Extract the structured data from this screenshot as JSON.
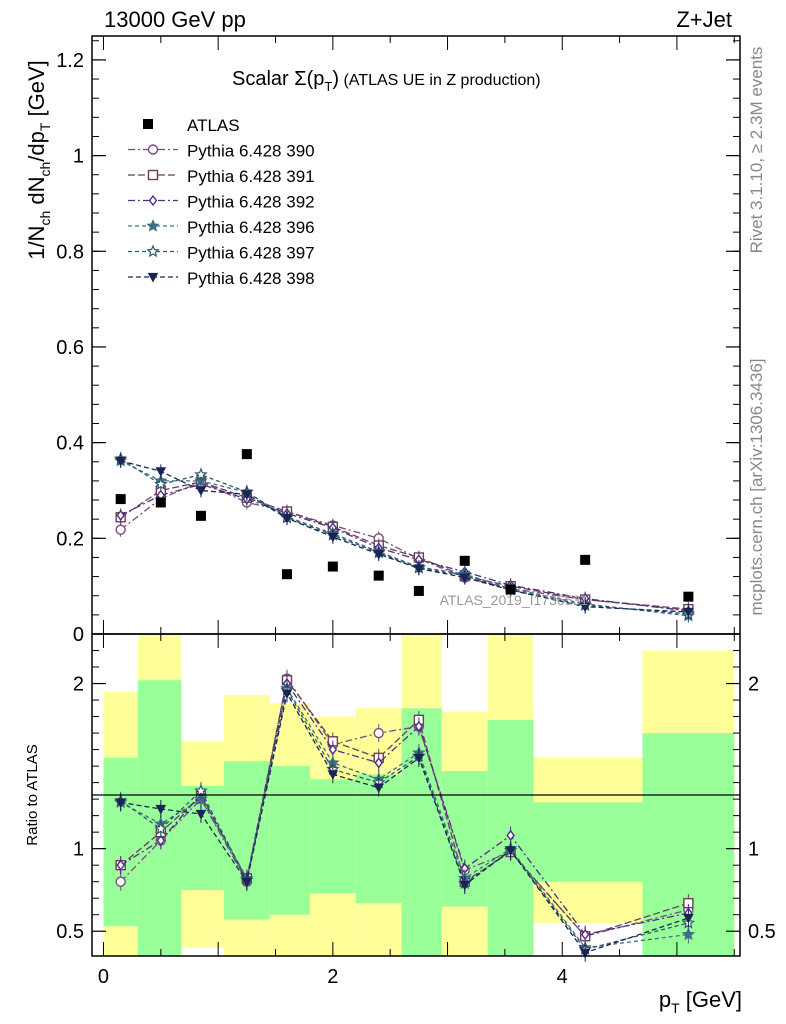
{
  "header": {
    "left": "13000 GeV pp",
    "right": "Z+Jet"
  },
  "side_text": {
    "top": "Rivet 3.1.10, ≥ 2.3M events",
    "bottom": "mcplots.cern.ch [arXiv:1306.3436]"
  },
  "colors": {
    "band_outer": "#ffff99",
    "band_inner": "#99ff99",
    "data": "#000000",
    "s390": "#7a4a82",
    "s391": "#6b3f5a",
    "s392": "#4e2e86",
    "s396": "#3e6f80",
    "s397": "#2e5a6a",
    "s398": "#1a2555"
  },
  "chart_data": [
    {
      "type": "scatter",
      "name": "main",
      "title": "Scalar Σ(p_T) (ATLAS UE in Z production)",
      "title_main": "Scalar ",
      "title_sigma": "Σ(p",
      "title_sub": "T",
      "title_close": ")",
      "title_rest": " (ATLAS UE in Z production)",
      "ylabel": "1/N_ch dN_ch/dp_T [GeV]",
      "ylabel_parts": {
        "a": "1/N",
        "a_sub": "ch",
        "b": " dN",
        "b_sub": "ch",
        "c": "/dp",
        "c_sub": "T",
        "d": " [GeV]"
      },
      "ylim": [
        0,
        1.25
      ],
      "xlim": [
        -0.1,
        5.55
      ],
      "yticks": [
        0,
        0.2,
        0.4,
        0.6,
        0.8,
        1,
        1.2
      ],
      "ytick_labels": [
        "0",
        "0.2",
        "0.4",
        "0.6",
        "0.8",
        "1",
        "1.2"
      ],
      "watermark": "ATLAS_2019_I1736531",
      "legend_position": "top-left",
      "x": [
        0.15,
        0.5,
        0.85,
        1.25,
        1.6,
        2.0,
        2.4,
        2.75,
        3.15,
        3.55,
        4.2,
        5.1
      ],
      "data": {
        "name": "ATLAS",
        "values": [
          0.282,
          0.275,
          0.247,
          0.376,
          0.125,
          0.141,
          0.122,
          0.09,
          0.153,
          0.093,
          0.155,
          0.078
        ]
      },
      "series": [
        {
          "name": "Pythia 6.428 390",
          "marker": "circle",
          "values": [
            0.218,
            0.283,
            0.318,
            0.275,
            0.256,
            0.227,
            0.2,
            0.157,
            0.118,
            0.095,
            0.072,
            0.05
          ]
        },
        {
          "name": "Pythia 6.428 391",
          "marker": "square",
          "values": [
            0.244,
            0.3,
            0.318,
            0.285,
            0.256,
            0.224,
            0.185,
            0.16,
            0.121,
            0.1,
            0.072,
            0.052
          ]
        },
        {
          "name": "Pythia 6.428 392",
          "marker": "diamond",
          "values": [
            0.248,
            0.29,
            0.313,
            0.282,
            0.252,
            0.222,
            0.18,
            0.155,
            0.13,
            0.102,
            0.074,
            0.048
          ]
        },
        {
          "name": "Pythia 6.428 396",
          "marker": "star",
          "values": [
            0.362,
            0.32,
            0.32,
            0.296,
            0.245,
            0.21,
            0.172,
            0.14,
            0.125,
            0.095,
            0.063,
            0.038
          ]
        },
        {
          "name": "Pythia 6.428 397",
          "marker": "star-open",
          "values": [
            0.366,
            0.313,
            0.333,
            0.297,
            0.243,
            0.207,
            0.17,
            0.138,
            0.122,
            0.092,
            0.06,
            0.042
          ]
        },
        {
          "name": "Pythia 6.428 398",
          "marker": "triangle-down",
          "values": [
            0.362,
            0.34,
            0.3,
            0.292,
            0.242,
            0.203,
            0.167,
            0.137,
            0.118,
            0.092,
            0.057,
            0.046
          ]
        }
      ]
    },
    {
      "type": "scatter",
      "name": "ratio",
      "ylabel": "Ratio to ATLAS",
      "xlabel": "p_T [GeV]",
      "xlabel_main": "p",
      "xlabel_sub": "T",
      "xlabel_unit": " [GeV]",
      "ylim": [
        0.35,
        2.3
      ],
      "xlim": [
        -0.1,
        5.55
      ],
      "yticks": [
        0.5,
        1,
        2
      ],
      "ytick_labels": [
        "0.5",
        "1",
        "2"
      ],
      "xticks": [
        0,
        2,
        4
      ],
      "xtick_labels": [
        "0",
        "2",
        "4"
      ],
      "bins": [
        [
          0.0,
          0.3
        ],
        [
          0.3,
          0.68
        ],
        [
          0.68,
          1.05
        ],
        [
          1.05,
          1.45
        ],
        [
          1.45,
          1.8
        ],
        [
          1.8,
          2.2
        ],
        [
          2.2,
          2.6
        ],
        [
          2.6,
          2.95
        ],
        [
          2.95,
          3.35
        ],
        [
          3.35,
          3.75
        ],
        [
          3.75,
          4.7
        ],
        [
          4.7,
          5.5
        ]
      ],
      "band_outer": [
        [
          0.35,
          1.95
        ],
        [
          0.35,
          2.3
        ],
        [
          0.4,
          1.65
        ],
        [
          0.35,
          1.93
        ],
        [
          0.35,
          1.88
        ],
        [
          0.35,
          1.8
        ],
        [
          0.35,
          1.85
        ],
        [
          0.35,
          2.3
        ],
        [
          0.35,
          1.83
        ],
        [
          0.35,
          2.3
        ],
        [
          0.55,
          1.55
        ],
        [
          0.35,
          2.2
        ]
      ],
      "band_inner": [
        [
          0.53,
          1.55
        ],
        [
          0.35,
          2.02
        ],
        [
          0.75,
          1.38
        ],
        [
          0.57,
          1.53
        ],
        [
          0.6,
          1.5
        ],
        [
          0.73,
          1.42
        ],
        [
          0.67,
          1.45
        ],
        [
          0.35,
          1.85
        ],
        [
          0.65,
          1.47
        ],
        [
          0.35,
          1.78
        ],
        [
          0.8,
          1.28
        ],
        [
          0.35,
          1.7
        ]
      ],
      "x": [
        0.15,
        0.5,
        0.85,
        1.25,
        1.6,
        2.0,
        2.4,
        2.75,
        3.15,
        3.55,
        4.2,
        5.1
      ],
      "series": [
        {
          "name": "Pythia 6.428 390",
          "marker": "circle",
          "values": [
            0.8,
            1.05,
            1.3,
            0.8,
            2.03,
            1.63,
            1.7,
            1.74,
            0.87,
            0.98,
            0.47,
            0.63
          ]
        },
        {
          "name": "Pythia 6.428 391",
          "marker": "square",
          "values": [
            0.9,
            1.1,
            1.32,
            0.82,
            2.02,
            1.65,
            1.55,
            1.78,
            0.8,
            0.98,
            0.47,
            0.67
          ]
        },
        {
          "name": "Pythia 6.428 392",
          "marker": "diamond",
          "values": [
            0.9,
            1.05,
            1.33,
            0.8,
            2.0,
            1.6,
            1.52,
            1.74,
            0.88,
            1.08,
            0.48,
            0.61
          ]
        },
        {
          "name": "Pythia 6.428 396",
          "marker": "star",
          "values": [
            1.28,
            1.15,
            1.3,
            0.82,
            1.97,
            1.52,
            1.42,
            1.58,
            0.82,
            1.0,
            0.4,
            0.48
          ]
        },
        {
          "name": "Pythia 6.428 397",
          "marker": "star-open",
          "values": [
            1.29,
            1.12,
            1.35,
            0.81,
            1.96,
            1.48,
            1.4,
            1.56,
            0.79,
            0.99,
            0.39,
            0.55
          ]
        },
        {
          "name": "Pythia 6.428 398",
          "marker": "triangle-down",
          "values": [
            1.28,
            1.24,
            1.21,
            0.8,
            1.94,
            1.45,
            1.37,
            1.55,
            0.78,
            0.99,
            0.37,
            0.58
          ]
        }
      ]
    }
  ]
}
